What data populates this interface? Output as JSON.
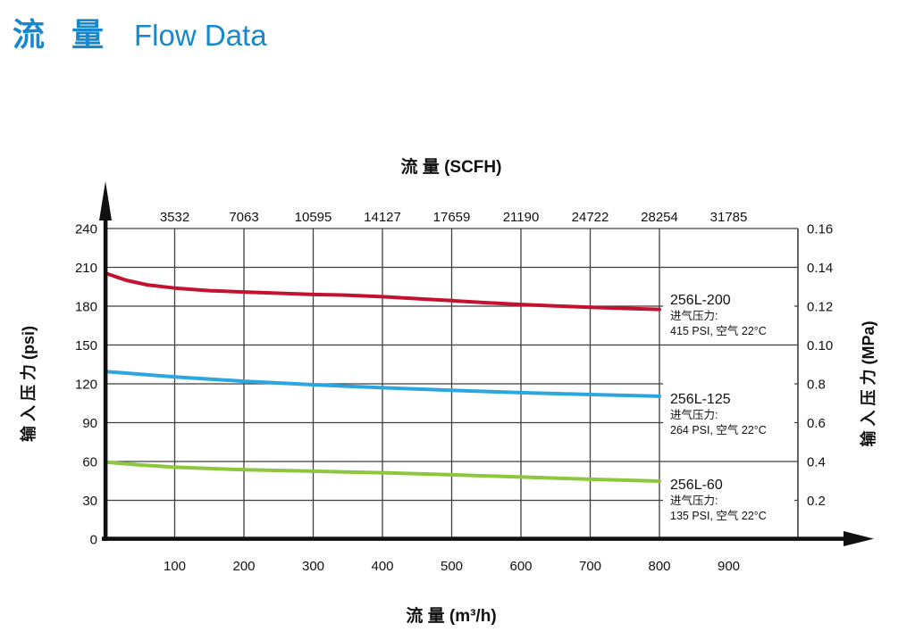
{
  "header": {
    "title_zh": "流 量",
    "title_en": "Flow Data"
  },
  "colors": {
    "title_blue": "#1588ce",
    "grid": "#3f3f3f",
    "axis": "#111111",
    "red": "#c2122f",
    "blue": "#2ca6e0",
    "green": "#8dc63f"
  },
  "chart_data": {
    "type": "line",
    "title_top_axis": "流 量 (SCFH)",
    "title_bottom_axis": "流 量 (m³/h)",
    "ylabel_left": "输 入 压 力 (psi)",
    "ylabel_right": "输 入 压 力 (MPa)",
    "xlim": [
      0,
      1000
    ],
    "ylim": [
      0,
      240
    ],
    "grid": "on",
    "grid_x": [
      100,
      200,
      300,
      400,
      500,
      600,
      700,
      800
    ],
    "grid_y": [
      30,
      60,
      90,
      120,
      150,
      180,
      210,
      240
    ],
    "x_bottom_tick_pos": [
      100,
      200,
      300,
      400,
      500,
      600,
      700,
      800,
      900
    ],
    "x_bottom_tick_labels": [
      "100",
      "200",
      "300",
      "400",
      "500",
      "600",
      "700",
      "800",
      "900"
    ],
    "x_top_tick_pos": [
      100,
      200,
      300,
      400,
      500,
      600,
      700,
      800,
      900
    ],
    "x_top_tick_labels": [
      "3532",
      "7063",
      "10595",
      "14127",
      "17659",
      "21190",
      "24722",
      "28254",
      "31785"
    ],
    "y_left_tick_pos": [
      0,
      30,
      60,
      90,
      120,
      150,
      180,
      210,
      240
    ],
    "y_left_tick_labels": [
      "0",
      "30",
      "60",
      "90",
      "120",
      "150",
      "180",
      "210",
      "240"
    ],
    "y_right_tick_pos": [
      30,
      60,
      90,
      120,
      150,
      180,
      210,
      240
    ],
    "y_right_tick_labels": [
      "0.2",
      "0.4",
      "0.6",
      "0.8",
      "0.10",
      "0.12",
      "0.14",
      "0.16"
    ],
    "series": [
      {
        "name": "256L-200",
        "color": "#c2122f",
        "label_lines": [
          "进气压力:",
          "415 PSI, 空气 22°C"
        ],
        "points": [
          [
            0,
            205.5
          ],
          [
            30,
            200
          ],
          [
            60,
            196.5
          ],
          [
            100,
            194
          ],
          [
            150,
            192
          ],
          [
            200,
            191
          ],
          [
            250,
            190
          ],
          [
            300,
            189
          ],
          [
            350,
            188.5
          ],
          [
            400,
            187.3
          ],
          [
            450,
            185.8
          ],
          [
            500,
            184.3
          ],
          [
            550,
            182.7
          ],
          [
            600,
            181.3
          ],
          [
            650,
            180.2
          ],
          [
            700,
            179.2
          ],
          [
            750,
            178.3
          ],
          [
            800,
            177.5
          ]
        ]
      },
      {
        "name": "256L-125",
        "color": "#2ca6e0",
        "label_lines": [
          "进气压力:",
          "264 PSI, 空气 22°C"
        ],
        "points": [
          [
            0,
            129.5
          ],
          [
            100,
            125.3
          ],
          [
            200,
            122
          ],
          [
            300,
            119.3
          ],
          [
            400,
            117
          ],
          [
            500,
            115
          ],
          [
            600,
            113.2
          ],
          [
            700,
            111.7
          ],
          [
            800,
            110.4
          ]
        ]
      },
      {
        "name": "256L-60",
        "color": "#8dc63f",
        "label_lines": [
          "进气压力:",
          "135 PSI, 空气 22°C"
        ],
        "points": [
          [
            0,
            59.5
          ],
          [
            50,
            57.3
          ],
          [
            100,
            55.6
          ],
          [
            200,
            53.6
          ],
          [
            300,
            52.5
          ],
          [
            400,
            51.3
          ],
          [
            500,
            49.7
          ],
          [
            600,
            48
          ],
          [
            700,
            46.3
          ],
          [
            800,
            44.8
          ]
        ]
      }
    ]
  }
}
